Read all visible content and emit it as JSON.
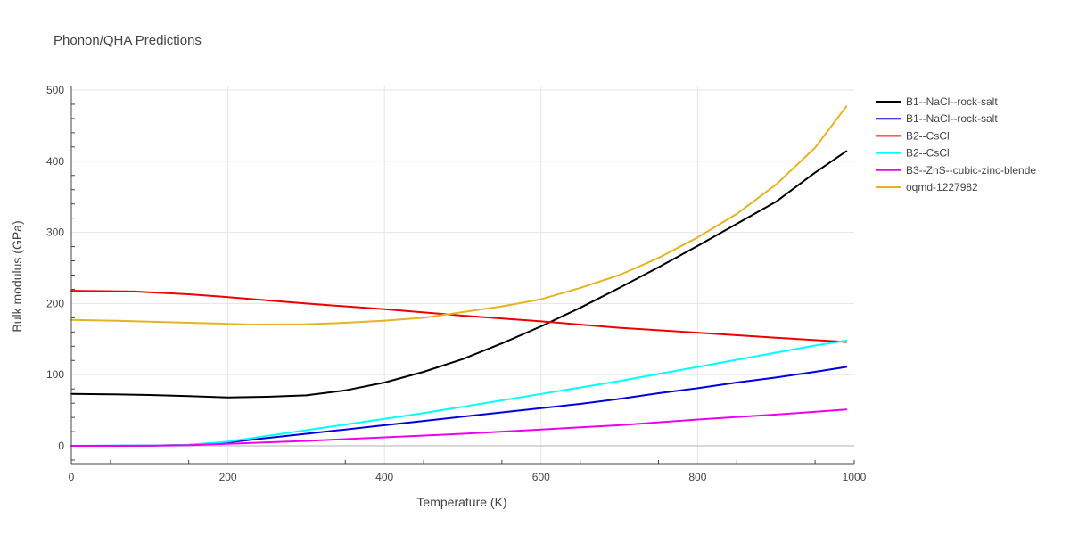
{
  "chart_data": {
    "type": "line",
    "title": "Phonon/QHA Predictions",
    "xlabel": "Temperature (K)",
    "ylabel": "Bulk modulus (GPa)",
    "xlim": [
      0,
      1000
    ],
    "ylim": [
      -25,
      505
    ],
    "xticks": [
      0,
      200,
      400,
      600,
      800,
      1000
    ],
    "yticks": [
      0,
      100,
      200,
      300,
      400,
      500
    ],
    "grid": true,
    "legend_position": "right",
    "series": [
      {
        "name": "B1--NaCl--rock-salt",
        "color": "#000000",
        "x": [
          0,
          50,
          100,
          150,
          200,
          250,
          300,
          350,
          400,
          450,
          500,
          550,
          600,
          650,
          700,
          750,
          800,
          850,
          900,
          950,
          990
        ],
        "y": [
          73,
          72.5,
          71.5,
          70,
          68,
          69,
          71,
          78,
          89,
          104,
          122,
          144,
          168,
          194,
          222,
          251,
          281,
          312,
          343,
          384,
          414
        ]
      },
      {
        "name": "B1--NaCl--rock-salt",
        "color": "#0000dd",
        "x": [
          0,
          100,
          150,
          200,
          250,
          300,
          350,
          400,
          450,
          500,
          550,
          600,
          650,
          700,
          750,
          800,
          850,
          900,
          950,
          990
        ],
        "y": [
          0,
          0.3,
          1.5,
          5,
          11,
          17,
          23,
          29,
          35,
          41,
          47,
          53,
          59,
          66,
          74,
          81,
          89,
          96,
          104,
          111
        ]
      },
      {
        "name": "B2--CsCl",
        "color": "#ee0000",
        "x": [
          0,
          80,
          150,
          200,
          300,
          400,
          500,
          600,
          700,
          800,
          900,
          990
        ],
        "y": [
          218,
          217,
          213,
          209,
          200,
          192,
          183,
          175,
          166,
          159,
          152,
          146
        ]
      },
      {
        "name": "B2--CsCl",
        "color": "#00ffff",
        "x": [
          0,
          100,
          150,
          200,
          250,
          300,
          350,
          400,
          450,
          500,
          550,
          600,
          650,
          700,
          750,
          800,
          850,
          900,
          950,
          990
        ],
        "y": [
          0,
          0.3,
          1.5,
          6,
          14,
          22,
          30,
          38,
          46,
          55,
          64,
          73,
          82,
          91,
          101,
          111,
          121,
          131,
          141,
          148
        ]
      },
      {
        "name": "B3--ZnS--cubic-zinc-blende",
        "color": "#ee00ee",
        "x": [
          0,
          100,
          150,
          200,
          300,
          400,
          500,
          600,
          700,
          800,
          900,
          990
        ],
        "y": [
          0,
          0.2,
          1,
          3,
          7,
          12,
          17,
          23,
          29,
          37,
          44,
          51
        ]
      },
      {
        "name": "oqmd-1227982",
        "color": "#e6b422",
        "x": [
          0,
          50,
          100,
          150,
          200,
          230,
          300,
          350,
          400,
          450,
          500,
          550,
          600,
          650,
          700,
          750,
          800,
          850,
          900,
          950,
          990
        ],
        "y": [
          177,
          176,
          174.5,
          173,
          171.5,
          170.5,
          171,
          173,
          176,
          180,
          188,
          196,
          206,
          222,
          240,
          264,
          293,
          326,
          367,
          419,
          477
        ]
      }
    ]
  }
}
